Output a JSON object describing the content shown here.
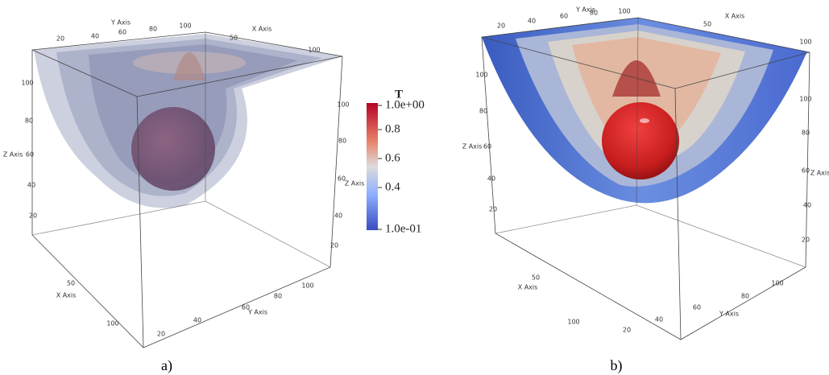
{
  "panels": [
    {
      "caption": "a)",
      "top_y_axis": {
        "title": "Y Axis",
        "ticks": [
          "20",
          "40",
          "60",
          "80",
          "100"
        ]
      },
      "top_x_axis": {
        "title": "X Axis",
        "ticks": [
          "50",
          "100"
        ]
      },
      "left_z_axis": {
        "title": "Z Axis",
        "ticks": [
          "100",
          "80",
          "60",
          "40",
          "20"
        ]
      },
      "right_z_axis": {
        "title": "Z Axis",
        "ticks": [
          "100",
          "80",
          "60",
          "40",
          "20"
        ]
      },
      "bottom_x_axis": {
        "title": "X Axis",
        "ticks": [
          "50",
          "100"
        ]
      },
      "bottom_y_axis": {
        "title": "Y Axis",
        "ticks": [
          "20",
          "40",
          "60",
          "80",
          "100"
        ]
      }
    },
    {
      "caption": "b)",
      "top_y_axis": {
        "title": "Y Axis",
        "ticks": [
          "20",
          "40",
          "60",
          "80",
          "100"
        ]
      },
      "top_x_axis": {
        "title": "X Axis",
        "ticks": [
          "50",
          "100"
        ]
      },
      "left_z_axis": {
        "title": "Z Axis",
        "ticks": [
          "100",
          "80",
          "60",
          "40",
          "20"
        ]
      },
      "right_z_axis": {
        "title": "Z Axis",
        "ticks": [
          "100",
          "80",
          "60",
          "40",
          "20"
        ]
      },
      "bottom_x_axis": {
        "title": "X Axis",
        "ticks": [
          "50",
          "100"
        ]
      },
      "bottom_y_axis": {
        "title": "Y Axis",
        "ticks": [
          "20",
          "40",
          "60",
          "80",
          "100"
        ]
      }
    }
  ],
  "colorbar": {
    "title": "T",
    "ticks": [
      "1.0e+00",
      "0.8",
      "0.6",
      "0.4",
      "1.0e-01"
    ]
  }
}
